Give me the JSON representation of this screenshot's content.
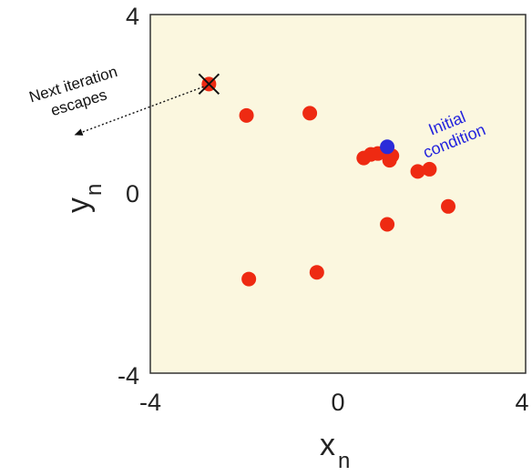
{
  "chart_data": {
    "type": "scatter",
    "xlim": [
      -4,
      4
    ],
    "ylim": [
      -4,
      4
    ],
    "x_ticks": [
      "-4",
      "0",
      "4"
    ],
    "y_ticks": [
      "-4",
      "0",
      "4"
    ],
    "xlabel": {
      "main": "x",
      "sub": "n"
    },
    "ylabel": {
      "main": "y",
      "sub": "n"
    },
    "grid": false,
    "colors": {
      "background": "#fbf7df",
      "points": "#ee2a12",
      "initial": "#2b2bd9",
      "annotation_blue": "#2222dd",
      "escaped_marker": "#111111"
    },
    "series": [
      {
        "role": "iterates",
        "points": [
          {
            "x": -2.75,
            "y": 2.45
          },
          {
            "x": -1.95,
            "y": 1.75
          },
          {
            "x": -0.6,
            "y": 1.8
          },
          {
            "x": 0.55,
            "y": 0.8
          },
          {
            "x": 0.7,
            "y": 0.88
          },
          {
            "x": 0.85,
            "y": 0.9
          },
          {
            "x": 1.1,
            "y": 0.75
          },
          {
            "x": 1.15,
            "y": 0.85
          },
          {
            "x": 1.7,
            "y": 0.5
          },
          {
            "x": 1.95,
            "y": 0.55
          },
          {
            "x": 2.35,
            "y": -0.28
          },
          {
            "x": 1.05,
            "y": -0.68
          },
          {
            "x": -0.45,
            "y": -1.75
          },
          {
            "x": -1.9,
            "y": -1.9
          }
        ]
      },
      {
        "role": "initial",
        "points": [
          {
            "x": 1.05,
            "y": 1.05
          }
        ]
      }
    ],
    "escaped_point": {
      "x": -2.75,
      "y": 2.45
    },
    "escape_target": {
      "x": -5.6,
      "y": 1.32
    },
    "annotations": {
      "escape_line1": "Next iteration",
      "escape_line2": "escapes",
      "initial_line1": "Initial",
      "initial_line2": "condition"
    }
  }
}
